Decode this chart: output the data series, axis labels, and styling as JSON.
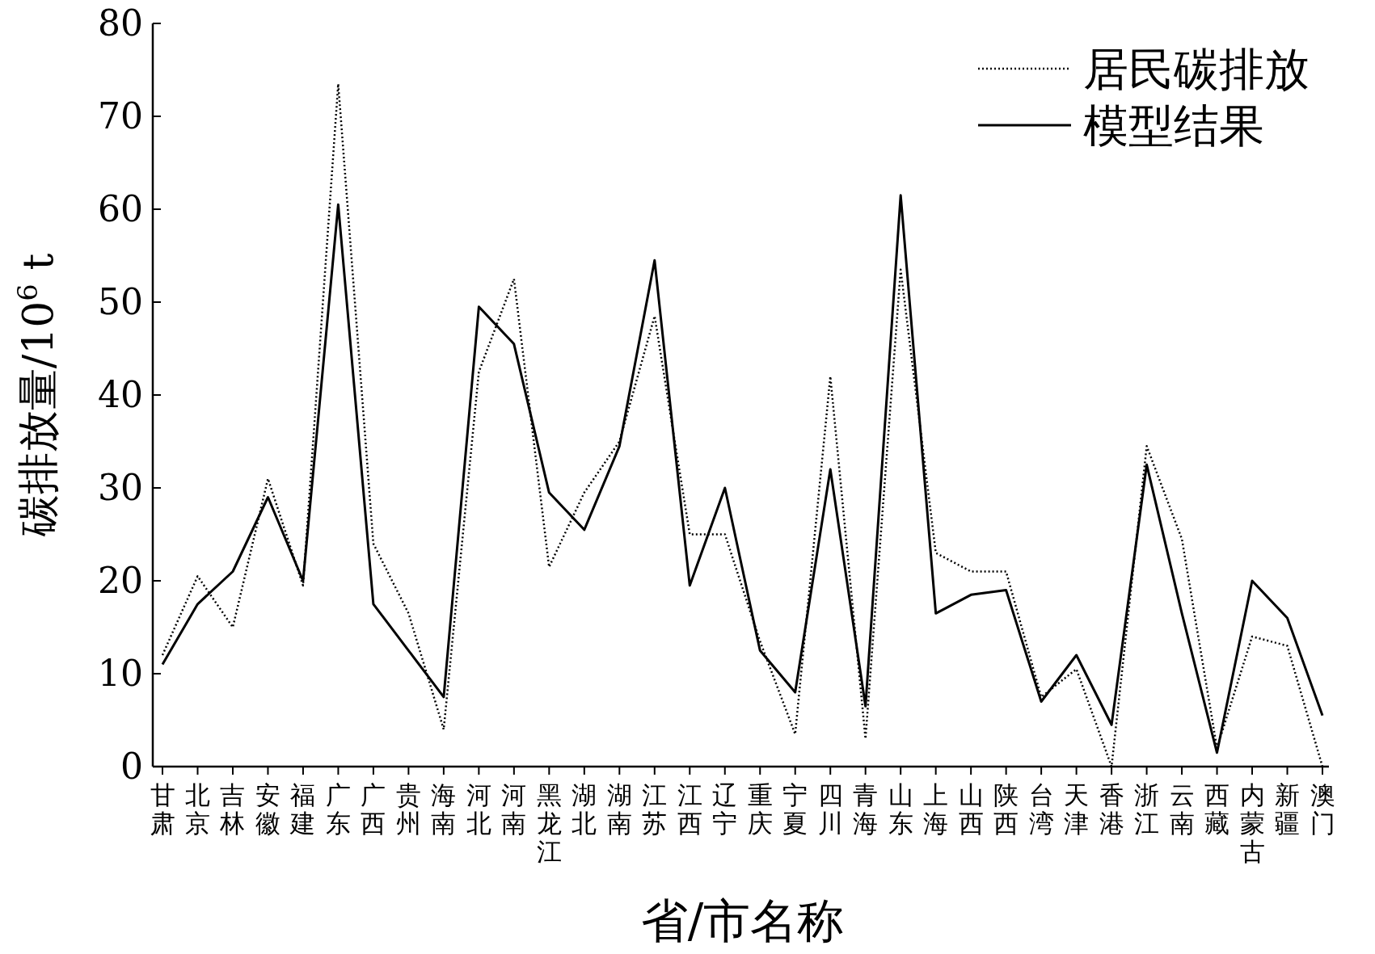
{
  "chart_data": {
    "type": "line",
    "xlabel": "省/市名称",
    "ylabel": "碳排放量/10$^{6}$ t",
    "categories": [
      "甘肃",
      "北京",
      "吉林",
      "安徽",
      "福建",
      "广东",
      "广西",
      "贵州",
      "海南",
      "河北",
      "河南",
      "黑龙江",
      "湖北",
      "湖南",
      "江苏",
      "江西",
      "辽宁",
      "重庆",
      "宁夏",
      "四川",
      "青海",
      "山东",
      "上海",
      "山西",
      "陕西",
      "台湾",
      "天津",
      "香港",
      "浙江",
      "云南",
      "西藏",
      "内蒙古",
      "新疆",
      "澳门"
    ],
    "series": [
      {
        "name": "居民碳排放",
        "color": "#000000",
        "line_style": "dotted",
        "values": [
          12,
          20.5,
          15,
          31,
          19.5,
          73.5,
          24,
          16.5,
          4,
          42.5,
          52.5,
          21.5,
          29.5,
          35,
          48.5,
          25,
          25,
          13.5,
          3.5,
          42,
          3,
          53.5,
          23,
          21,
          21,
          7.5,
          10.5,
          0,
          34.5,
          24.5,
          2,
          14,
          13,
          0
        ]
      },
      {
        "name": "模型结果",
        "color": "#000000",
        "line_style": "solid",
        "values": [
          11,
          17.5,
          21,
          29,
          20,
          60.5,
          17.5,
          12.5,
          7.5,
          49.5,
          45.5,
          29.5,
          25.5,
          34.5,
          54.5,
          19.5,
          30,
          12.5,
          8,
          32,
          6.5,
          61.5,
          16.5,
          18.5,
          19,
          7,
          12,
          4.5,
          32.5,
          16.5,
          1.5,
          20,
          16,
          5.5
        ]
      }
    ],
    "ylim": [
      0,
      80
    ],
    "yticks": [
      0,
      10,
      20,
      30,
      40,
      50,
      60,
      70,
      80
    ],
    "grid": false,
    "legend": "top right",
    "marker": "none"
  }
}
